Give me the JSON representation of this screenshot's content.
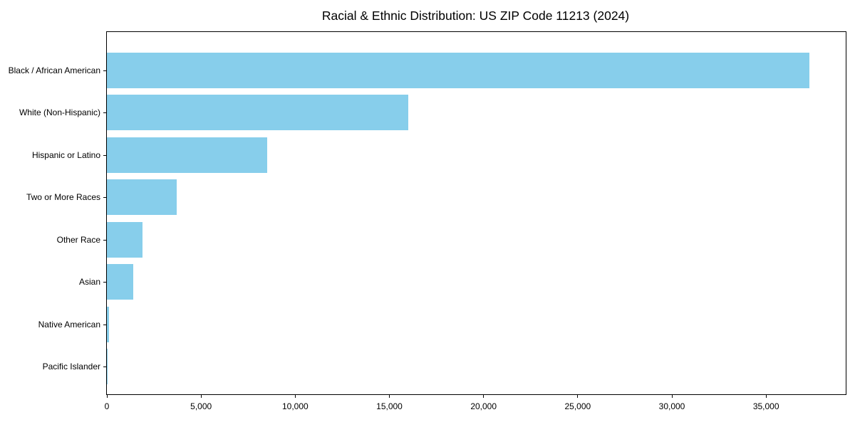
{
  "chart_data": {
    "type": "bar",
    "orientation": "horizontal",
    "title": "Racial & Ethnic Distribution: US ZIP Code 11213 (2024)",
    "categories": [
      "Black / African American",
      "White (Non-Hispanic)",
      "Hispanic or Latino",
      "Two or More Races",
      "Other Race",
      "Asian",
      "Native American",
      "Pacific Islander"
    ],
    "values": [
      37300,
      16000,
      8500,
      3700,
      1900,
      1400,
      100,
      40
    ],
    "xlabel": "",
    "ylabel": "",
    "xlim": [
      0,
      39230
    ],
    "xticks": {
      "values": [
        0,
        5000,
        10000,
        15000,
        20000,
        25000,
        30000,
        35000
      ],
      "labels": [
        "0",
        "5,000",
        "10,000",
        "15,000",
        "20,000",
        "25,000",
        "30,000",
        "35,000"
      ]
    },
    "bar_color": "#87CEEB",
    "spine_color": "#000000",
    "grid": false,
    "legend": null
  }
}
